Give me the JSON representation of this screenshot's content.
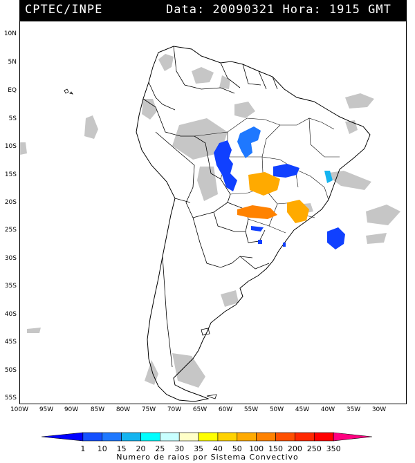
{
  "header": {
    "agency": "CPTEC/INPE",
    "datetime": "Data: 20090321 Hora: 1915 GMT"
  },
  "lat_labels": [
    "10N",
    "5N",
    "EQ",
    "5S",
    "10S",
    "15S",
    "20S",
    "25S",
    "30S",
    "35S",
    "40S",
    "45S",
    "50S",
    "55S"
  ],
  "lon_labels": [
    "100W",
    "95W",
    "90W",
    "85W",
    "80W",
    "75W",
    "70W",
    "65W",
    "60W",
    "55W",
    "50W",
    "45W",
    "40W",
    "35W",
    "30W"
  ],
  "colorbar": {
    "labels": [
      "1",
      "10",
      "15",
      "20",
      "25",
      "30",
      "35",
      "40",
      "50",
      "100",
      "150",
      "200",
      "250",
      "350"
    ],
    "colors": [
      "#0000ff",
      "#1450ff",
      "#1e78ff",
      "#14b4f0",
      "#00ffff",
      "#c8ffff",
      "#ffffc8",
      "#ffff00",
      "#ffd200",
      "#ffaa00",
      "#ff8200",
      "#ff5000",
      "#ff2800",
      "#ff0000",
      "#ff0080"
    ],
    "caption": "Numero de raios por Sistema Convectivo"
  },
  "legend_colors": {
    "cloud": "#c4c4c4",
    "storm_dark_blue": "#1040ff",
    "storm_blue": "#1e78ff",
    "storm_cyan": "#14b4f0",
    "storm_orange_light": "#ffaa00",
    "storm_orange": "#ff8200"
  }
}
